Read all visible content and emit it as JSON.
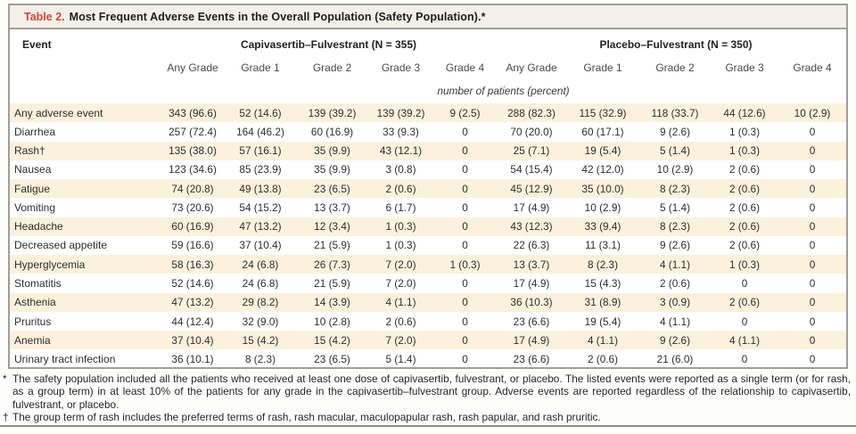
{
  "table": {
    "title_label": "Table 2.",
    "title_text": "Most Frequent Adverse Events in the Overall Population (Safety Population).*",
    "columns": {
      "event_header": "Event",
      "group1_label": "Capivasertib–Fulvestrant (N = 355)",
      "group2_label": "Placebo–Fulvestrant (N = 350)",
      "subheaders": [
        "Any Grade",
        "Grade 1",
        "Grade 2",
        "Grade 3",
        "Grade 4",
        "Any Grade",
        "Grade 1",
        "Grade 2",
        "Grade 3",
        "Grade 4"
      ],
      "units_note": "number of patients (percent)"
    },
    "rows": [
      {
        "event": "Any adverse event",
        "values": [
          "343 (96.6)",
          "52 (14.6)",
          "139 (39.2)",
          "139 (39.2)",
          "9 (2.5)",
          "288 (82.3)",
          "115 (32.9)",
          "118 (33.7)",
          "44 (12.6)",
          "10 (2.9)"
        ]
      },
      {
        "event": "Diarrhea",
        "values": [
          "257 (72.4)",
          "164 (46.2)",
          "60 (16.9)",
          "33 (9.3)",
          "0",
          "70 (20.0)",
          "60 (17.1)",
          "9 (2.6)",
          "1 (0.3)",
          "0"
        ]
      },
      {
        "event": "Rash†",
        "values": [
          "135 (38.0)",
          "57 (16.1)",
          "35 (9.9)",
          "43 (12.1)",
          "0",
          "25 (7.1)",
          "19 (5.4)",
          "5 (1.4)",
          "1 (0.3)",
          "0"
        ]
      },
      {
        "event": "Nausea",
        "values": [
          "123 (34.6)",
          "85 (23.9)",
          "35 (9.9)",
          "3 (0.8)",
          "0",
          "54 (15.4)",
          "42 (12.0)",
          "10 (2.9)",
          "2 (0.6)",
          "0"
        ]
      },
      {
        "event": "Fatigue",
        "values": [
          "74 (20.8)",
          "49 (13.8)",
          "23 (6.5)",
          "2 (0.6)",
          "0",
          "45 (12.9)",
          "35 (10.0)",
          "8 (2.3)",
          "2 (0.6)",
          "0"
        ]
      },
      {
        "event": "Vomiting",
        "values": [
          "73 (20.6)",
          "54 (15.2)",
          "13 (3.7)",
          "6 (1.7)",
          "0",
          "17 (4.9)",
          "10 (2.9)",
          "5 (1.4)",
          "2 (0.6)",
          "0"
        ]
      },
      {
        "event": "Headache",
        "values": [
          "60 (16.9)",
          "47 (13.2)",
          "12 (3.4)",
          "1 (0.3)",
          "0",
          "43 (12.3)",
          "33 (9.4)",
          "8 (2.3)",
          "2 (0.6)",
          "0"
        ]
      },
      {
        "event": "Decreased appetite",
        "values": [
          "59 (16.6)",
          "37 (10.4)",
          "21 (5.9)",
          "1 (0.3)",
          "0",
          "22 (6.3)",
          "11 (3.1)",
          "9 (2.6)",
          "2 (0.6)",
          "0"
        ]
      },
      {
        "event": "Hyperglycemia",
        "values": [
          "58 (16.3)",
          "24 (6.8)",
          "26 (7.3)",
          "7 (2.0)",
          "1 (0.3)",
          "13 (3.7)",
          "8 (2.3)",
          "4 (1.1)",
          "1 (0.3)",
          "0"
        ]
      },
      {
        "event": "Stomatitis",
        "values": [
          "52 (14.6)",
          "24 (6.8)",
          "21 (5.9)",
          "7 (2.0)",
          "0",
          "17 (4.9)",
          "15 (4.3)",
          "2 (0.6)",
          "0",
          "0"
        ]
      },
      {
        "event": "Asthenia",
        "values": [
          "47 (13.2)",
          "29 (8.2)",
          "14 (3.9)",
          "4 (1.1)",
          "0",
          "36 (10.3)",
          "31 (8.9)",
          "3 (0.9)",
          "2 (0.6)",
          "0"
        ]
      },
      {
        "event": "Pruritus",
        "values": [
          "44 (12.4)",
          "32 (9.0)",
          "10 (2.8)",
          "2 (0.6)",
          "0",
          "23 (6.6)",
          "19 (5.4)",
          "4 (1.1)",
          "0",
          "0"
        ]
      },
      {
        "event": "Anemia",
        "values": [
          "37 (10.4)",
          "15 (4.2)",
          "15 (4.2)",
          "7 (2.0)",
          "0",
          "17 (4.9)",
          "4 (1.1)",
          "9 (2.6)",
          "4 (1.1)",
          "0"
        ]
      },
      {
        "event": "Urinary tract infection",
        "values": [
          "36 (10.1)",
          "8 (2.3)",
          "23 (6.5)",
          "5 (1.4)",
          "0",
          "23 (6.6)",
          "2 (0.6)",
          "21 (6.0)",
          "0",
          "0"
        ]
      }
    ],
    "footnotes": [
      {
        "marker": "*",
        "text": "The safety population included all the patients who received at least one dose of capivasertib, fulvestrant, or placebo. The listed events were reported as a single term (or for rash, as a group term) in at least 10% of the patients for any grade in the capivasertib–fulvestrant group. Adverse events are reported regardless of the relationship to capivasertib, fulvestrant, or placebo."
      },
      {
        "marker": "†",
        "text": "The group term of rash includes the preferred terms of rash, rash macular, maculopapular rash, rash papular, and rash pruritic."
      }
    ],
    "colors": {
      "title_red": "#cd4a3e",
      "titlebar_bg": "#f4efe8",
      "row_stripe": "#fbf1dd",
      "border_gray": "#a39d98"
    }
  }
}
